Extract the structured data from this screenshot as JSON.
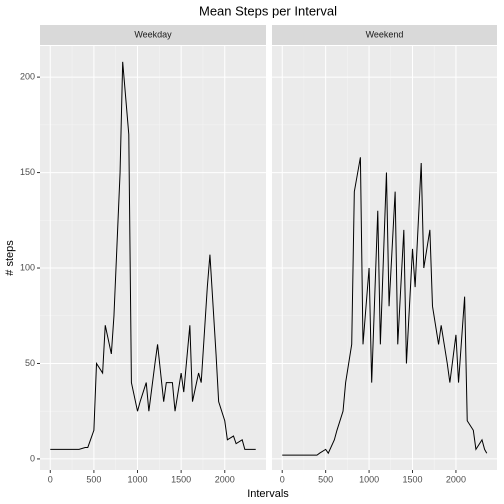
{
  "chart_data": {
    "type": "line",
    "title": "Mean Steps per Interval",
    "xlabel": "Intervals",
    "ylabel": "# steps",
    "x": [
      0,
      30,
      100,
      130,
      200,
      230,
      300,
      330,
      400,
      430,
      500,
      530,
      600,
      630,
      700,
      730,
      800,
      830,
      900,
      930,
      1000,
      1030,
      1100,
      1130,
      1200,
      1230,
      1300,
      1330,
      1400,
      1430,
      1500,
      1530,
      1600,
      1630,
      1700,
      1730,
      1800,
      1830,
      1900,
      1930,
      2000,
      2030,
      2100,
      2130,
      2200,
      2230,
      2300,
      2330,
      2355
    ],
    "series": [
      {
        "name": "Weekday",
        "color": "#000000",
        "values": [
          5,
          5,
          5,
          5,
          5,
          5,
          5,
          5,
          6,
          6,
          15,
          50,
          45,
          70,
          55,
          75,
          150,
          208,
          170,
          40,
          25,
          30,
          40,
          25,
          50,
          60,
          30,
          40,
          40,
          25,
          45,
          35,
          70,
          30,
          45,
          40,
          90,
          107,
          55,
          30,
          20,
          10,
          12,
          8,
          10,
          5,
          5,
          5,
          5
        ]
      },
      {
        "name": "Weekend",
        "color": "#000000",
        "values": [
          2,
          2,
          2,
          2,
          2,
          2,
          2,
          2,
          2,
          3,
          5,
          3,
          10,
          15,
          25,
          40,
          60,
          140,
          158,
          60,
          100,
          40,
          130,
          60,
          150,
          80,
          140,
          60,
          120,
          50,
          110,
          90,
          155,
          100,
          120,
          80,
          60,
          70,
          50,
          40,
          65,
          40,
          85,
          20,
          15,
          5,
          10,
          5,
          3
        ]
      }
    ],
    "xlim": [
      -117.75,
      2472.75
    ],
    "xticks": [
      0,
      500,
      1000,
      1500,
      2000
    ],
    "ylim": [
      -5.8,
      216.3
    ],
    "yticks": [
      0,
      50,
      100,
      150,
      200
    ],
    "grid": true
  }
}
